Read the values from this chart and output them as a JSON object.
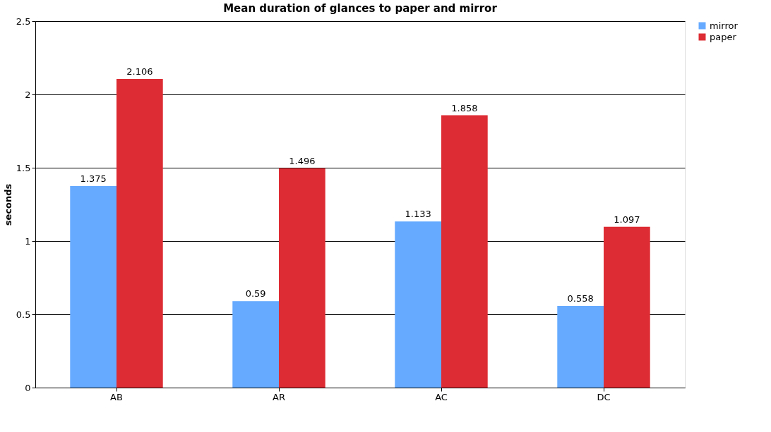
{
  "chart_data": {
    "type": "bar",
    "title": "Mean duration of glances to paper and mirror",
    "ylabel": "seconds",
    "categories": [
      "AB",
      "AR",
      "AC",
      "DC"
    ],
    "series": [
      {
        "name": "mirror",
        "color": "#66aaff",
        "values": [
          1.375,
          0.59,
          1.133,
          0.558
        ]
      },
      {
        "name": "paper",
        "color": "#dd2c33",
        "values": [
          2.106,
          1.496,
          1.858,
          1.097
        ]
      }
    ],
    "ylim": [
      0,
      2.5
    ],
    "yticks": [
      0,
      0.5,
      1,
      1.5,
      2,
      2.5
    ],
    "grid": "y",
    "legend": "right",
    "data_labels": true
  }
}
